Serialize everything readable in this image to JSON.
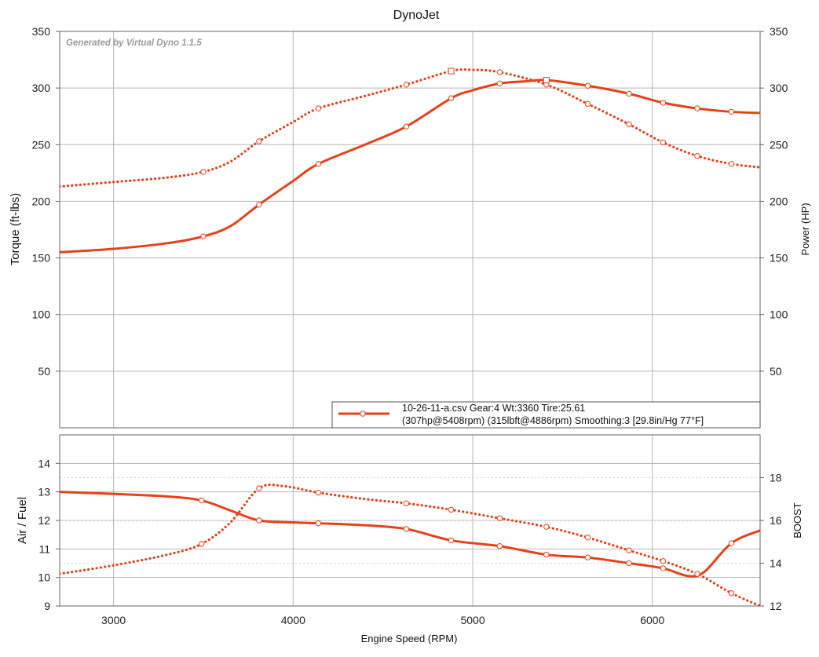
{
  "chart_data": [
    {
      "type": "line",
      "title": "DynoJet",
      "watermark": "Generated by Virtual Dyno 1.1.5",
      "xlabel": "",
      "ylabel": "Torque (ft-lbs)",
      "y2label": "Power (HP)",
      "xlim": [
        2700,
        6600
      ],
      "ylim": [
        0,
        350
      ],
      "y2lim": [
        0,
        350
      ],
      "x_ticks": [
        3000,
        4000,
        5000,
        6000
      ],
      "y_ticks": [
        50,
        100,
        150,
        200,
        250,
        300,
        350
      ],
      "y2_ticks": [
        50,
        100,
        150,
        200,
        250,
        300,
        350
      ],
      "grid": true,
      "legend_position": "bottom-right",
      "legend": {
        "line1": "10-26-11-a.csv Gear:4 Wt:3360 Tire:25.61",
        "line2": "(307hp@5408rpm) (315lbft@4886rpm) Smoothing:3 [29.8in/Hg 77°F]"
      },
      "series": [
        {
          "name": "Power",
          "axis": "right",
          "style": "solid",
          "color": "#e5421b",
          "x": [
            2700,
            3000,
            3300,
            3500,
            3650,
            3810,
            4000,
            4140,
            4400,
            4630,
            4880,
            5000,
            5150,
            5300,
            5410,
            5640,
            5870,
            6060,
            6250,
            6440,
            6600
          ],
          "values": [
            155,
            158,
            163,
            169,
            178,
            197,
            218,
            233,
            250,
            266,
            291,
            298,
            304,
            306,
            307,
            302,
            295,
            287,
            282,
            279,
            278
          ]
        },
        {
          "name": "Torque",
          "axis": "left",
          "style": "dotted",
          "color": "#e5421b",
          "x": [
            2700,
            3000,
            3300,
            3500,
            3650,
            3810,
            4000,
            4140,
            4400,
            4630,
            4880,
            5000,
            5150,
            5410,
            5640,
            5870,
            6060,
            6250,
            6440,
            6600
          ],
          "values": [
            213,
            217,
            221,
            226,
            235,
            253,
            270,
            282,
            293,
            303,
            315,
            316,
            314,
            303,
            286,
            268,
            252,
            240,
            233,
            230
          ]
        }
      ]
    },
    {
      "type": "line",
      "title": "",
      "xlabel": "Engine Speed (RPM)",
      "ylabel": "Air / Fuel",
      "y2label": "BOOST",
      "xlim": [
        2700,
        6600
      ],
      "ylim": [
        9,
        15
      ],
      "y2lim": [
        12,
        20
      ],
      "x_ticks": [
        3000,
        4000,
        5000,
        6000
      ],
      "y_ticks": [
        9,
        10,
        11,
        12,
        13,
        14
      ],
      "y2_ticks": [
        12,
        14,
        16,
        18
      ],
      "grid": true,
      "series": [
        {
          "name": "Air / Fuel",
          "axis": "left",
          "style": "solid",
          "color": "#e5421b",
          "x": [
            2700,
            3000,
            3300,
            3490,
            3650,
            3810,
            4000,
            4140,
            4400,
            4630,
            4880,
            5150,
            5410,
            5640,
            5870,
            6060,
            6200,
            6290,
            6440,
            6600
          ],
          "values": [
            13.0,
            12.93,
            12.84,
            12.7,
            12.35,
            12.0,
            11.93,
            11.9,
            11.83,
            11.7,
            11.3,
            11.1,
            10.8,
            10.7,
            10.5,
            10.32,
            10.05,
            10.2,
            11.2,
            11.65
          ]
        },
        {
          "name": "BOOST",
          "axis": "right",
          "style": "dotted",
          "color": "#e5421b",
          "x": [
            2700,
            3000,
            3300,
            3490,
            3650,
            3810,
            3950,
            4140,
            4400,
            4630,
            4880,
            5150,
            5410,
            5640,
            5870,
            6060,
            6250,
            6440,
            6600
          ],
          "values": [
            13.5,
            13.9,
            14.4,
            14.9,
            15.9,
            17.5,
            17.6,
            17.3,
            17.0,
            16.8,
            16.5,
            16.1,
            15.7,
            15.2,
            14.6,
            14.1,
            13.5,
            12.6,
            12.0
          ]
        }
      ]
    }
  ]
}
